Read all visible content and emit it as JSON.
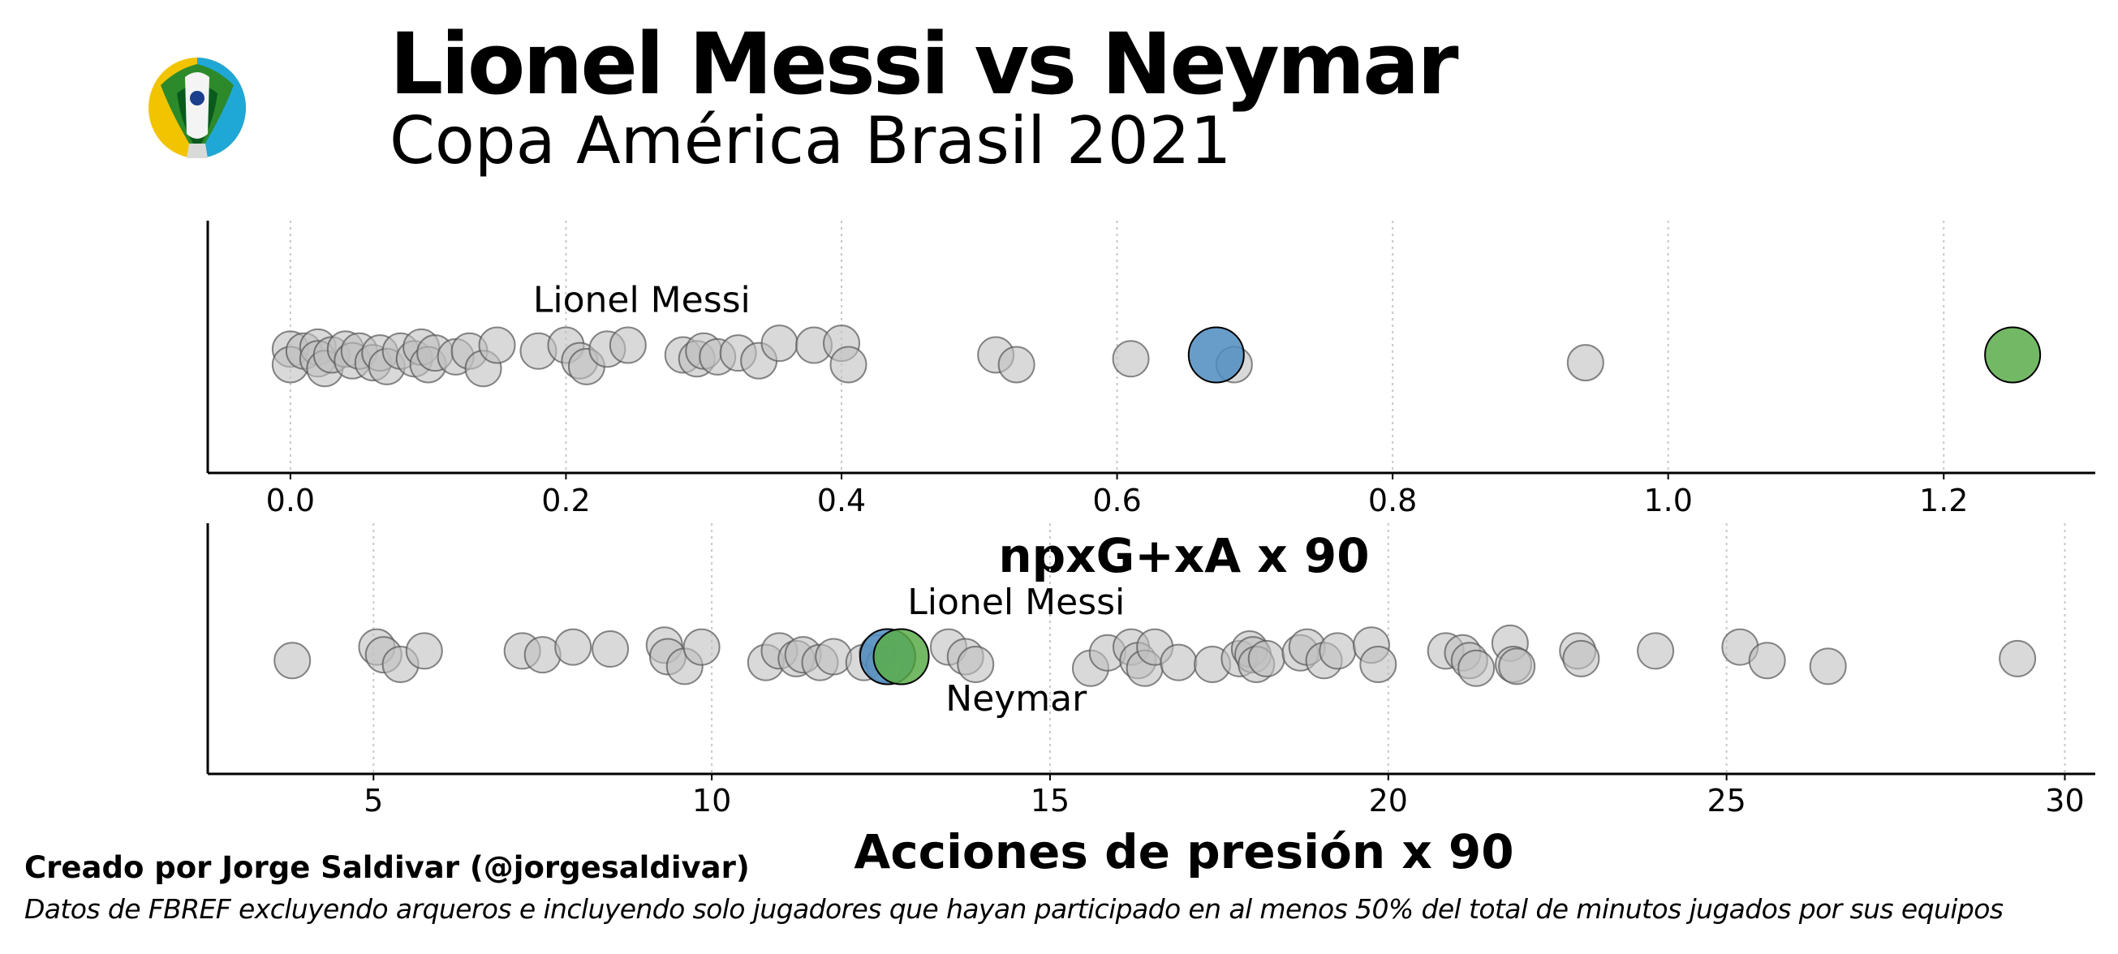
{
  "header": {
    "title": "Lionel Messi vs Neymar",
    "subtitle": "Copa América Brasil 2021",
    "logo_icon": "copa-america-2021-trophy-logo"
  },
  "footer": {
    "credit": "Creado por Jorge Saldivar (@jorgesaldivar)",
    "source": "Datos de FBREF excluyendo arqueros e incluyendo solo jugadores que hayan participado en al menos 50% del total de minutos jugados por sus equipos"
  },
  "colors": {
    "others_fill": "#bfbfbf",
    "others_stroke": "#555555",
    "messi": "#4f8cc0",
    "neymar": "#5aad4a",
    "grid": "#c8c8c8"
  },
  "chart_data": [
    {
      "type": "scatter",
      "xlabel": "npxG+xA x 90",
      "xlim": [
        -0.06,
        1.31
      ],
      "x_ticks": [
        "0.0",
        "0.2",
        "0.4",
        "0.6",
        "0.8",
        "1.0",
        "1.2"
      ],
      "grid": "vertical dotted",
      "others": [
        {
          "x": 0.0,
          "y": 0.03
        },
        {
          "x": 0.0,
          "y": -0.05
        },
        {
          "x": 0.01,
          "y": 0.02
        },
        {
          "x": 0.02,
          "y": 0.04
        },
        {
          "x": 0.02,
          "y": -0.02
        },
        {
          "x": 0.025,
          "y": -0.07
        },
        {
          "x": 0.03,
          "y": 0.0
        },
        {
          "x": 0.04,
          "y": 0.03
        },
        {
          "x": 0.045,
          "y": -0.03
        },
        {
          "x": 0.05,
          "y": 0.02
        },
        {
          "x": 0.06,
          "y": -0.04
        },
        {
          "x": 0.065,
          "y": 0.01
        },
        {
          "x": 0.07,
          "y": -0.06
        },
        {
          "x": 0.08,
          "y": 0.02
        },
        {
          "x": 0.09,
          "y": -0.02
        },
        {
          "x": 0.095,
          "y": 0.04
        },
        {
          "x": 0.1,
          "y": -0.05
        },
        {
          "x": 0.105,
          "y": 0.01
        },
        {
          "x": 0.12,
          "y": -0.01
        },
        {
          "x": 0.13,
          "y": 0.02
        },
        {
          "x": 0.14,
          "y": -0.07
        },
        {
          "x": 0.15,
          "y": 0.05
        },
        {
          "x": 0.18,
          "y": 0.02
        },
        {
          "x": 0.2,
          "y": 0.05
        },
        {
          "x": 0.21,
          "y": -0.03
        },
        {
          "x": 0.215,
          "y": -0.06
        },
        {
          "x": 0.23,
          "y": 0.03
        },
        {
          "x": 0.245,
          "y": 0.05
        },
        {
          "x": 0.285,
          "y": 0.0
        },
        {
          "x": 0.295,
          "y": -0.02
        },
        {
          "x": 0.3,
          "y": 0.02
        },
        {
          "x": 0.31,
          "y": -0.01
        },
        {
          "x": 0.325,
          "y": 0.01
        },
        {
          "x": 0.34,
          "y": -0.03
        },
        {
          "x": 0.355,
          "y": 0.06
        },
        {
          "x": 0.38,
          "y": 0.05
        },
        {
          "x": 0.4,
          "y": 0.06
        },
        {
          "x": 0.405,
          "y": -0.05
        },
        {
          "x": 0.512,
          "y": 0.0
        },
        {
          "x": 0.527,
          "y": -0.05
        },
        {
          "x": 0.61,
          "y": -0.02
        },
        {
          "x": 0.685,
          "y": -0.05
        },
        {
          "x": 0.94,
          "y": -0.04
        }
      ],
      "highlights": [
        {
          "name": "Lionel Messi",
          "x": 0.672,
          "y": 0.0,
          "color": "#4f8cc0"
        },
        {
          "name": "Neymar",
          "x": 1.25,
          "y": 0.0,
          "color": "#5aad4a"
        }
      ],
      "annotations": [
        {
          "text": "Lionel Messi",
          "x": 0.255,
          "y": 0.28
        }
      ]
    },
    {
      "type": "scatter",
      "xlabel": "Acciones de presión x 90",
      "xlim": [
        2.55,
        30.45
      ],
      "x_ticks": [
        "5",
        "10",
        "15",
        "20",
        "25",
        "30"
      ],
      "grid": "vertical dotted",
      "others": [
        {
          "x": 3.8,
          "y": -0.02
        },
        {
          "x": 5.05,
          "y": 0.05
        },
        {
          "x": 5.15,
          "y": 0.01
        },
        {
          "x": 5.4,
          "y": -0.04
        },
        {
          "x": 5.75,
          "y": 0.03
        },
        {
          "x": 7.2,
          "y": 0.03
        },
        {
          "x": 7.5,
          "y": 0.01
        },
        {
          "x": 7.95,
          "y": 0.05
        },
        {
          "x": 8.5,
          "y": 0.04
        },
        {
          "x": 9.3,
          "y": 0.06
        },
        {
          "x": 9.35,
          "y": 0.0
        },
        {
          "x": 9.6,
          "y": -0.05
        },
        {
          "x": 9.85,
          "y": 0.05
        },
        {
          "x": 10.8,
          "y": -0.03
        },
        {
          "x": 11.0,
          "y": 0.03
        },
        {
          "x": 11.25,
          "y": -0.01
        },
        {
          "x": 11.35,
          "y": 0.01
        },
        {
          "x": 11.6,
          "y": -0.03
        },
        {
          "x": 11.8,
          "y": 0.0
        },
        {
          "x": 12.25,
          "y": -0.03
        },
        {
          "x": 12.45,
          "y": 0.02
        },
        {
          "x": 12.55,
          "y": -0.04
        },
        {
          "x": 13.5,
          "y": 0.05
        },
        {
          "x": 13.75,
          "y": 0.0
        },
        {
          "x": 13.9,
          "y": -0.04
        },
        {
          "x": 15.6,
          "y": -0.06
        },
        {
          "x": 15.85,
          "y": 0.02
        },
        {
          "x": 16.2,
          "y": 0.05
        },
        {
          "x": 16.3,
          "y": -0.02
        },
        {
          "x": 16.4,
          "y": -0.06
        },
        {
          "x": 16.55,
          "y": 0.05
        },
        {
          "x": 16.9,
          "y": -0.03
        },
        {
          "x": 17.4,
          "y": -0.04
        },
        {
          "x": 17.8,
          "y": -0.01
        },
        {
          "x": 17.95,
          "y": 0.04
        },
        {
          "x": 18.0,
          "y": 0.01
        },
        {
          "x": 18.05,
          "y": -0.04
        },
        {
          "x": 18.2,
          "y": -0.01
        },
        {
          "x": 18.7,
          "y": 0.02
        },
        {
          "x": 18.8,
          "y": 0.05
        },
        {
          "x": 19.05,
          "y": -0.02
        },
        {
          "x": 19.25,
          "y": 0.03
        },
        {
          "x": 19.75,
          "y": 0.06
        },
        {
          "x": 19.85,
          "y": -0.04
        },
        {
          "x": 20.85,
          "y": 0.03
        },
        {
          "x": 21.1,
          "y": 0.02
        },
        {
          "x": 21.2,
          "y": -0.02
        },
        {
          "x": 21.3,
          "y": -0.06
        },
        {
          "x": 21.8,
          "y": 0.07
        },
        {
          "x": 21.85,
          "y": -0.04
        },
        {
          "x": 21.9,
          "y": -0.05
        },
        {
          "x": 22.8,
          "y": 0.03
        },
        {
          "x": 22.85,
          "y": -0.01
        },
        {
          "x": 23.95,
          "y": 0.03
        },
        {
          "x": 25.2,
          "y": 0.05
        },
        {
          "x": 25.6,
          "y": -0.02
        },
        {
          "x": 26.5,
          "y": -0.05
        },
        {
          "x": 29.3,
          "y": -0.01
        }
      ],
      "highlights": [
        {
          "name": "Lionel Messi",
          "x": 12.6,
          "y": 0.0,
          "color": "#4f8cc0"
        },
        {
          "name": "Neymar",
          "x": 12.8,
          "y": 0.0,
          "color": "#5aad4a"
        }
      ],
      "annotations": [
        {
          "text": "Lionel Messi",
          "x": 14.5,
          "y": 0.28
        },
        {
          "text": "Neymar",
          "x": 14.5,
          "y": -0.22
        }
      ]
    }
  ]
}
